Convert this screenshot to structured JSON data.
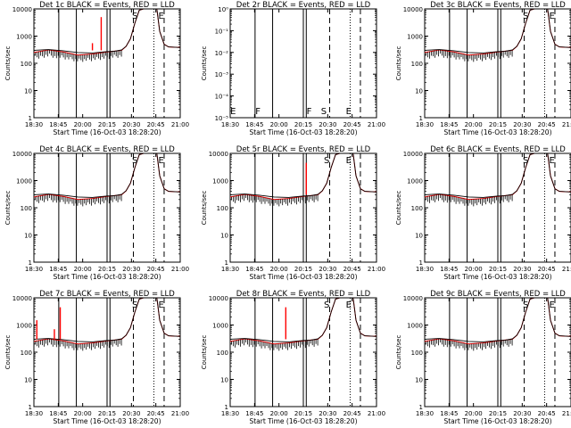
{
  "figure": {
    "xlabel": "Start Time (16-Oct-03 18:28:20)",
    "ylabel": "Counts/sec",
    "xtick_labels": [
      "18:30",
      "18:45",
      "20:00",
      "20:15",
      "20:30",
      "20:45",
      "21:00"
    ],
    "ytick_labels": [
      "1",
      "10",
      "100",
      "1000",
      "10000"
    ],
    "ytick_labels_low": [
      "10⁻⁵",
      "10⁻⁴",
      "10⁻³",
      "10⁻²",
      "10⁻¹",
      "10⁰"
    ],
    "colors": {
      "events": "#000000",
      "lld": "#ff0000"
    }
  },
  "chart_data": [
    {
      "type": "line",
      "title": "Det 1c BLACK = Events, RED = LLD",
      "xlabel": "Start Time (16-Oct-03 18:28:20)",
      "ylabel": "Counts/sec",
      "y_scale": "log",
      "ylim": [
        1,
        10000
      ],
      "solid_markers": [
        0.17,
        0.29,
        0.5,
        0.52
      ],
      "dashed_markers": [
        0.68,
        0.89
      ],
      "dotted_markers": [
        0.82
      ],
      "letters": [
        {
          "text": "S",
          "pos": 0.69
        },
        {
          "text": "E",
          "pos": 0.87
        }
      ],
      "x": [
        0.0,
        0.1,
        0.2,
        0.3,
        0.4,
        0.5,
        0.55,
        0.6,
        0.63,
        0.66,
        0.69,
        0.72,
        0.75,
        0.8,
        0.84,
        0.86,
        0.89,
        0.92,
        1.0
      ],
      "series": [
        {
          "values": [
            300,
            320,
            290,
            250,
            240,
            270,
            280,
            310,
            420,
            800,
            3000,
            9000,
            10000,
            10000,
            10000,
            1500,
            500,
            400,
            380
          ]
        },
        {
          "values": [
            250,
            310,
            260,
            200,
            220,
            260,
            280,
            300,
            420,
            800,
            3000,
            9000,
            10000,
            10000,
            10000,
            1500,
            500,
            400,
            380
          ]
        }
      ],
      "spikes": [
        {
          "at": 0.46,
          "value": 5000
        },
        {
          "at": 0.4,
          "value": 550
        }
      ]
    },
    {
      "type": "line",
      "title": "Det 2r BLACK = Events, RED = LLD",
      "xlabel": "Start Time (16-Oct-03 18:28:20)",
      "ylabel": "Counts/sec",
      "y_scale": "log",
      "ylim": [
        1e-05,
        1
      ],
      "solid_markers": [
        0.17,
        0.29,
        0.5,
        0.52
      ],
      "dashed_markers": [
        0.68,
        0.89
      ],
      "dotted_markers": [
        0.82
      ],
      "letters": [
        {
          "text": "E",
          "pos": 0.02
        },
        {
          "text": "F",
          "pos": 0.19
        },
        {
          "text": "F",
          "pos": 0.54
        },
        {
          "text": "S",
          "pos": 0.64
        },
        {
          "text": "E",
          "pos": 0.81
        }
      ],
      "x": [],
      "series": [],
      "spikes": []
    },
    {
      "type": "line",
      "title": "Det 3c BLACK = Events, RED = LLD",
      "xlabel": "Start Time (16-Oct-03 18:28:20)",
      "ylabel": "Counts/sec",
      "y_scale": "log",
      "ylim": [
        1,
        10000
      ],
      "solid_markers": [
        0.17,
        0.29,
        0.5,
        0.52
      ],
      "dashed_markers": [
        0.68,
        0.89
      ],
      "dotted_markers": [
        0.82
      ],
      "letters": [
        {
          "text": "S",
          "pos": 0.69
        },
        {
          "text": "E",
          "pos": 0.87
        }
      ],
      "x": [
        0.0,
        0.1,
        0.2,
        0.3,
        0.4,
        0.5,
        0.55,
        0.6,
        0.63,
        0.66,
        0.69,
        0.72,
        0.75,
        0.8,
        0.84,
        0.86,
        0.89,
        0.92,
        1.0
      ],
      "series": [
        {
          "values": [
            300,
            320,
            290,
            250,
            240,
            270,
            280,
            310,
            420,
            800,
            3000,
            9000,
            10000,
            10000,
            10000,
            1500,
            500,
            400,
            380
          ]
        },
        {
          "values": [
            250,
            310,
            260,
            200,
            220,
            260,
            280,
            300,
            420,
            800,
            3000,
            9000,
            10000,
            10000,
            10000,
            1500,
            500,
            400,
            380
          ]
        }
      ],
      "spikes": []
    },
    {
      "type": "line",
      "title": "Det 4c BLACK = Events, RED = LLD",
      "xlabel": "Start Time (16-Oct-03 18:28:20)",
      "ylabel": "Counts/sec",
      "y_scale": "log",
      "ylim": [
        1,
        10000
      ],
      "solid_markers": [
        0.17,
        0.29,
        0.5,
        0.52
      ],
      "dashed_markers": [
        0.68,
        0.89
      ],
      "dotted_markers": [
        0.82
      ],
      "letters": [
        {
          "text": "S",
          "pos": 0.69
        },
        {
          "text": "E",
          "pos": 0.87
        }
      ],
      "x": [
        0.0,
        0.1,
        0.2,
        0.3,
        0.4,
        0.5,
        0.55,
        0.6,
        0.63,
        0.66,
        0.69,
        0.72,
        0.75,
        0.8,
        0.84,
        0.86,
        0.89,
        0.92,
        1.0
      ],
      "series": [
        {
          "values": [
            300,
            320,
            290,
            250,
            240,
            270,
            280,
            310,
            420,
            800,
            3000,
            9000,
            10000,
            10000,
            10000,
            1500,
            500,
            400,
            380
          ]
        },
        {
          "values": [
            250,
            310,
            260,
            200,
            220,
            260,
            280,
            300,
            420,
            800,
            3000,
            9000,
            10000,
            10000,
            10000,
            1500,
            500,
            400,
            380
          ]
        }
      ],
      "spikes": []
    },
    {
      "type": "line",
      "title": "Det 5r BLACK = Events, RED = LLD",
      "xlabel": "Start Time (16-Oct-03 18:28:20)",
      "ylabel": "Counts/sec",
      "y_scale": "log",
      "ylim": [
        1,
        10000
      ],
      "solid_markers": [
        0.17,
        0.29,
        0.5,
        0.52
      ],
      "dashed_markers": [
        0.68,
        0.89
      ],
      "dotted_markers": [
        0.82
      ],
      "letters": [
        {
          "text": "S",
          "pos": 0.66
        },
        {
          "text": "E",
          "pos": 0.81
        }
      ],
      "x": [
        0.0,
        0.1,
        0.2,
        0.3,
        0.4,
        0.5,
        0.55,
        0.6,
        0.63,
        0.66,
        0.69,
        0.72,
        0.75,
        0.8,
        0.84,
        0.86,
        0.89,
        0.92,
        1.0
      ],
      "series": [
        {
          "values": [
            300,
            320,
            290,
            250,
            240,
            270,
            280,
            310,
            420,
            800,
            3000,
            9000,
            10000,
            10000,
            10000,
            1500,
            500,
            400,
            380
          ]
        },
        {
          "values": [
            250,
            310,
            260,
            200,
            220,
            260,
            280,
            300,
            420,
            800,
            3000,
            9000,
            10000,
            10000,
            10000,
            1500,
            500,
            400,
            380
          ]
        }
      ],
      "spikes": [
        {
          "at": 0.52,
          "value": 4500
        }
      ]
    },
    {
      "type": "line",
      "title": "Det 6c BLACK = Events, RED = LLD",
      "xlabel": "Start Time (16-Oct-03 18:28:20)",
      "ylabel": "Counts/sec",
      "y_scale": "log",
      "ylim": [
        1,
        10000
      ],
      "solid_markers": [
        0.17,
        0.29,
        0.5,
        0.52
      ],
      "dashed_markers": [
        0.68,
        0.89
      ],
      "dotted_markers": [
        0.82
      ],
      "letters": [
        {
          "text": "S",
          "pos": 0.69
        },
        {
          "text": "E",
          "pos": 0.87
        }
      ],
      "x": [
        0.0,
        0.1,
        0.2,
        0.3,
        0.4,
        0.5,
        0.55,
        0.6,
        0.63,
        0.66,
        0.69,
        0.72,
        0.75,
        0.8,
        0.84,
        0.86,
        0.89,
        0.92,
        1.0
      ],
      "series": [
        {
          "values": [
            300,
            320,
            290,
            250,
            240,
            270,
            280,
            310,
            420,
            800,
            3000,
            9000,
            10000,
            10000,
            10000,
            1500,
            500,
            400,
            380
          ]
        },
        {
          "values": [
            250,
            310,
            260,
            200,
            220,
            260,
            280,
            300,
            420,
            800,
            3000,
            9000,
            10000,
            10000,
            10000,
            1500,
            500,
            400,
            380
          ]
        }
      ],
      "spikes": []
    },
    {
      "type": "line",
      "title": "Det 7c BLACK = Events, RED = LLD",
      "xlabel": "Start Time (16-Oct-03 18:28:20)",
      "ylabel": "Counts/sec",
      "y_scale": "log",
      "ylim": [
        1,
        10000
      ],
      "solid_markers": [
        0.17,
        0.29,
        0.5,
        0.52
      ],
      "dashed_markers": [
        0.68,
        0.89
      ],
      "dotted_markers": [
        0.82
      ],
      "letters": [
        {
          "text": "S",
          "pos": 0.69
        },
        {
          "text": "E",
          "pos": 0.87
        }
      ],
      "x": [
        0.0,
        0.1,
        0.2,
        0.3,
        0.4,
        0.5,
        0.55,
        0.6,
        0.63,
        0.66,
        0.69,
        0.72,
        0.75,
        0.8,
        0.84,
        0.86,
        0.89,
        0.92,
        1.0
      ],
      "series": [
        {
          "values": [
            300,
            320,
            290,
            250,
            240,
            270,
            280,
            310,
            420,
            800,
            3000,
            9000,
            10000,
            10000,
            10000,
            1500,
            500,
            400,
            380
          ]
        },
        {
          "values": [
            250,
            310,
            260,
            200,
            220,
            260,
            280,
            300,
            420,
            800,
            3000,
            9000,
            10000,
            10000,
            10000,
            1500,
            500,
            400,
            380
          ]
        }
      ],
      "spikes": [
        {
          "at": 0.02,
          "value": 1500
        },
        {
          "at": 0.18,
          "value": 4500
        },
        {
          "at": 0.14,
          "value": 700
        }
      ]
    },
    {
      "type": "line",
      "title": "Det 8r BLACK = Events, RED = LLD",
      "xlabel": "Start Time (16-Oct-03 18:28:20)",
      "ylabel": "Counts/sec",
      "y_scale": "log",
      "ylim": [
        1,
        10000
      ],
      "solid_markers": [
        0.17,
        0.29,
        0.5,
        0.52
      ],
      "dashed_markers": [
        0.68,
        0.89
      ],
      "dotted_markers": [
        0.82
      ],
      "letters": [
        {
          "text": "S",
          "pos": 0.66
        },
        {
          "text": "E",
          "pos": 0.81
        }
      ],
      "x": [
        0.0,
        0.1,
        0.2,
        0.3,
        0.4,
        0.5,
        0.55,
        0.6,
        0.63,
        0.66,
        0.69,
        0.72,
        0.75,
        0.8,
        0.84,
        0.86,
        0.89,
        0.92,
        1.0
      ],
      "series": [
        {
          "values": [
            300,
            320,
            290,
            250,
            240,
            270,
            280,
            310,
            420,
            800,
            3000,
            9000,
            10000,
            10000,
            10000,
            1500,
            500,
            400,
            380
          ]
        },
        {
          "values": [
            250,
            310,
            260,
            200,
            220,
            260,
            280,
            300,
            420,
            800,
            3000,
            9000,
            10000,
            10000,
            10000,
            1500,
            500,
            400,
            380
          ]
        }
      ],
      "spikes": [
        {
          "at": 0.38,
          "value": 4500
        }
      ]
    },
    {
      "type": "line",
      "title": "Det 9c BLACK = Events, RED = LLD",
      "xlabel": "Start Time (16-Oct-03 18:28:20)",
      "ylabel": "Counts/sec",
      "y_scale": "log",
      "ylim": [
        1,
        10000
      ],
      "solid_markers": [
        0.17,
        0.29,
        0.5,
        0.52
      ],
      "dashed_markers": [
        0.68,
        0.89
      ],
      "dotted_markers": [
        0.82
      ],
      "letters": [
        {
          "text": "S",
          "pos": 0.69
        },
        {
          "text": "E",
          "pos": 0.87
        }
      ],
      "x": [
        0.0,
        0.1,
        0.2,
        0.3,
        0.4,
        0.5,
        0.55,
        0.6,
        0.63,
        0.66,
        0.69,
        0.72,
        0.75,
        0.8,
        0.84,
        0.86,
        0.89,
        0.92,
        1.0
      ],
      "series": [
        {
          "values": [
            300,
            320,
            290,
            250,
            240,
            270,
            280,
            310,
            420,
            800,
            3000,
            9000,
            10000,
            10000,
            10000,
            1500,
            500,
            400,
            380
          ]
        },
        {
          "values": [
            250,
            310,
            260,
            200,
            220,
            260,
            280,
            300,
            420,
            800,
            3000,
            9000,
            10000,
            10000,
            10000,
            1500,
            500,
            400,
            380
          ]
        }
      ],
      "spikes": []
    }
  ]
}
